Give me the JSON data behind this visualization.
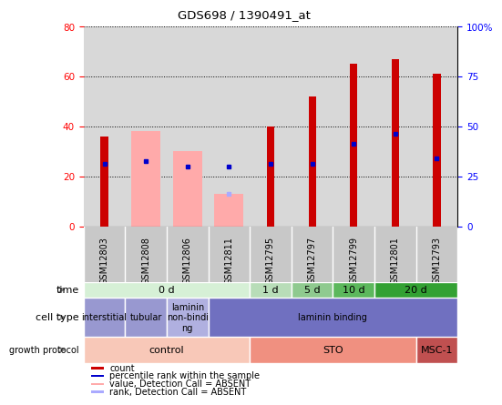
{
  "title": "GDS698 / 1390491_at",
  "samples": [
    "GSM12803",
    "GSM12808",
    "GSM12806",
    "GSM12811",
    "GSM12795",
    "GSM12797",
    "GSM12799",
    "GSM12801",
    "GSM12793"
  ],
  "red_bars": [
    36,
    0,
    0,
    0,
    40,
    52,
    65,
    67,
    61
  ],
  "pink_bars": [
    0,
    38,
    30,
    13,
    0,
    0,
    0,
    0,
    0
  ],
  "blue_dots_left": [
    25,
    26,
    24,
    24,
    25,
    25,
    33,
    37,
    27
  ],
  "light_blue_dots": [
    0,
    0,
    0,
    13,
    0,
    0,
    0,
    0,
    0
  ],
  "ylim_left": [
    0,
    80
  ],
  "ylim_right": [
    0,
    100
  ],
  "yticks_left": [
    0,
    20,
    40,
    60,
    80
  ],
  "yticks_right": [
    0,
    25,
    50,
    75,
    100
  ],
  "time_groups": [
    {
      "label": "0 d",
      "start": 0,
      "end": 4,
      "color": "#d6f0d6"
    },
    {
      "label": "1 d",
      "start": 4,
      "end": 5,
      "color": "#b8ddb8"
    },
    {
      "label": "5 d",
      "start": 5,
      "end": 6,
      "color": "#8fca8f"
    },
    {
      "label": "10 d",
      "start": 6,
      "end": 7,
      "color": "#5cb85c"
    },
    {
      "label": "20 d",
      "start": 7,
      "end": 9,
      "color": "#33a133"
    }
  ],
  "cell_type_groups": [
    {
      "label": "interstitial",
      "start": 0,
      "end": 1,
      "color": "#9898d0"
    },
    {
      "label": "tubular",
      "start": 1,
      "end": 2,
      "color": "#9898d0"
    },
    {
      "label": "laminin\nnon-bindi\nng",
      "start": 2,
      "end": 3,
      "color": "#b0b0e0"
    },
    {
      "label": "laminin binding",
      "start": 3,
      "end": 9,
      "color": "#7070c0"
    }
  ],
  "growth_protocol_groups": [
    {
      "label": "control",
      "start": 0,
      "end": 4,
      "color": "#f8c8b8"
    },
    {
      "label": "STO",
      "start": 4,
      "end": 8,
      "color": "#f09080"
    },
    {
      "label": "MSC-1",
      "start": 8,
      "end": 9,
      "color": "#c05050"
    }
  ],
  "legend_items": [
    {
      "label": "count",
      "color": "#cc0000"
    },
    {
      "label": "percentile rank within the sample",
      "color": "#0000cc"
    },
    {
      "label": "value, Detection Call = ABSENT",
      "color": "#ffaaaa"
    },
    {
      "label": "rank, Detection Call = ABSENT",
      "color": "#aaaaff"
    }
  ],
  "red_color": "#cc0000",
  "pink_color": "#ffaaaa",
  "blue_color": "#0000cc",
  "light_blue_color": "#aaaaff",
  "plot_bg_color": "#d8d8d8",
  "xtick_bg_color": "#c8c8c8"
}
